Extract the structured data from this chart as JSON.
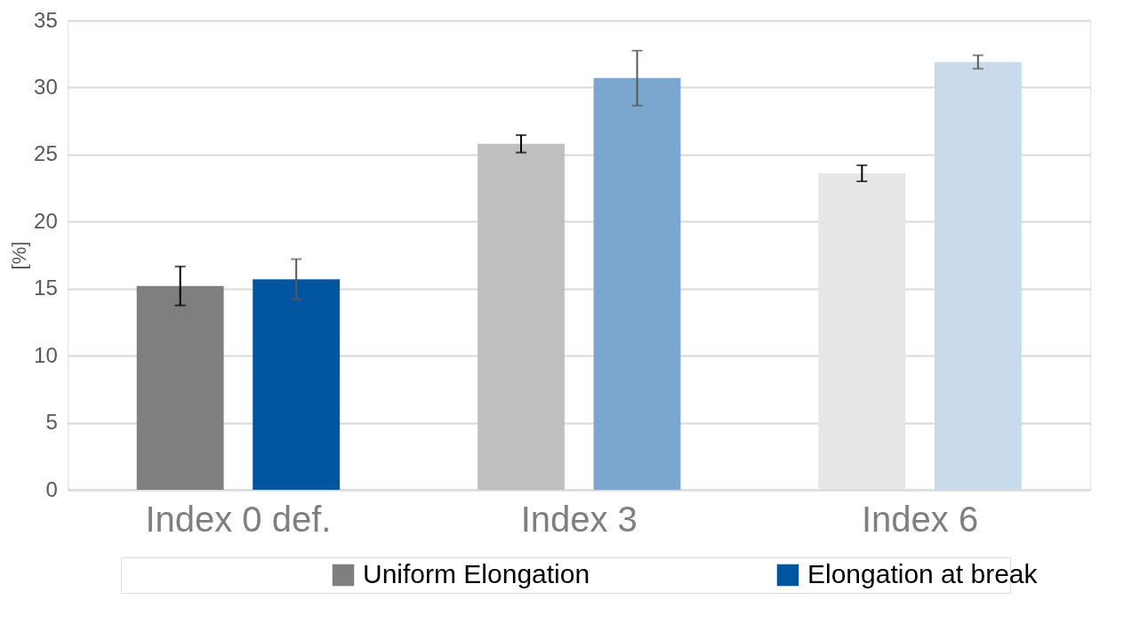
{
  "chart_data": {
    "type": "bar",
    "ylabel": "[%]",
    "categories": [
      "Index 0 def.",
      "Index 3",
      "Index 6"
    ],
    "series": [
      {
        "name": "Uniform Elongation",
        "color": "#7f7f7f",
        "colors": [
          "#7f7f7f",
          "#bfbfbf",
          "#e6e6e6"
        ],
        "values": [
          15.2,
          25.8,
          23.6
        ],
        "errors": [
          1.45,
          0.65,
          0.6
        ]
      },
      {
        "name": "Elongation at break",
        "color": "#0055a0",
        "colors": [
          "#0055a0",
          "#7ba7cf",
          "#c9dbeb"
        ],
        "values": [
          15.7,
          30.7,
          31.9
        ],
        "errors": [
          1.5,
          2.05,
          0.5
        ]
      }
    ],
    "ylim": [
      0,
      35
    ],
    "yticks": [
      0,
      5,
      10,
      15,
      20,
      25,
      30,
      35
    ],
    "grid": "y",
    "legend": "bottom"
  }
}
